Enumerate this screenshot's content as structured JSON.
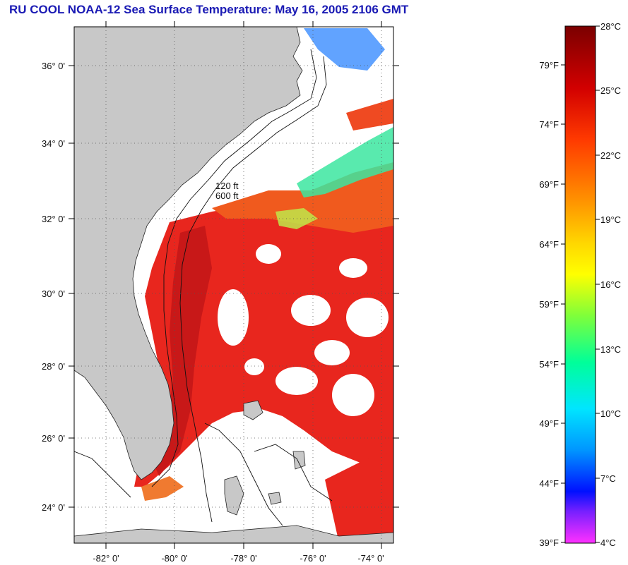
{
  "title": "RU COOL  NOAA-12  Sea Surface Temperature:  May 16, 2005 2106 GMT",
  "map": {
    "lat_labels": [
      "36° 0'",
      "34° 0'",
      "32° 0'",
      "30° 0'",
      "28° 0'",
      "26° 0'",
      "24° 0'"
    ],
    "lon_labels": [
      "-82° 0'",
      "-80° 0'",
      "-78° 0'",
      "-76° 0'",
      "-74° 0'"
    ],
    "contour_labels": [
      "120 ft",
      "600 ft"
    ],
    "colors": {
      "land": "#c8c8c8",
      "cloud": "#ffffff",
      "warm_sst": "#e8261e",
      "frame": "#000000"
    }
  },
  "colorbar": {
    "fahrenheit_labels": [
      "79°F",
      "74°F",
      "69°F",
      "64°F",
      "59°F",
      "54°F",
      "49°F",
      "44°F",
      "39°F"
    ],
    "celsius_labels": [
      "28°C",
      "25°C",
      "22°C",
      "19°C",
      "16°C",
      "13°C",
      "10°C",
      "7°C",
      "4°C"
    ]
  }
}
